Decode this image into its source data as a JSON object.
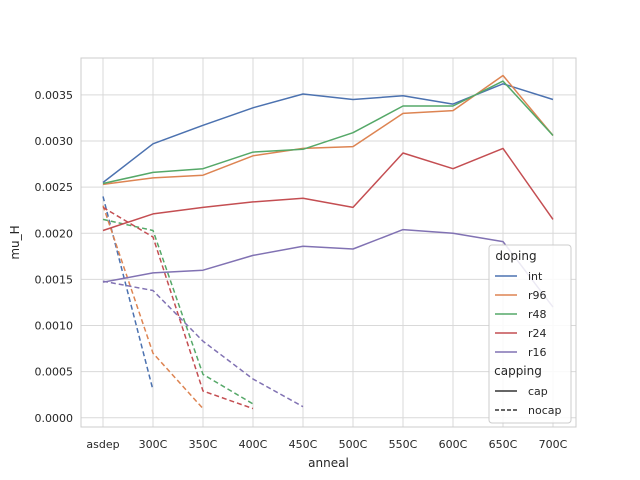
{
  "chart_data": {
    "type": "line",
    "xlabel": "anneal",
    "ylabel": "mu_H",
    "categories": [
      "asdep",
      "300C",
      "350C",
      "400C",
      "450C",
      "500C",
      "550C",
      "600C",
      "650C",
      "700C"
    ],
    "ylim": [
      -0.0001,
      0.0039
    ],
    "yticks": [
      0.0,
      0.0005,
      0.001,
      0.0015,
      0.002,
      0.0025,
      0.003,
      0.0035
    ],
    "ytick_labels": [
      "0.0000",
      "0.0005",
      "0.0010",
      "0.0015",
      "0.0020",
      "0.0025",
      "0.0030",
      "0.0035"
    ],
    "grid": true,
    "legend_placement": "lower-right",
    "legend": {
      "hue_title": "doping",
      "style_title": "capping",
      "style_entries": [
        {
          "label": "cap",
          "dash": "solid"
        },
        {
          "label": "nocap",
          "dash": "dashed"
        }
      ]
    },
    "series": [
      {
        "name": "int",
        "color": "#4c72b0",
        "cap": [
          0.00255,
          0.00297,
          0.00317,
          0.00336,
          0.00351,
          0.00345,
          0.00349,
          0.0034,
          0.00362,
          0.00345
        ],
        "nocap": [
          0.0024,
          0.0003,
          null,
          null,
          null,
          null,
          null,
          null,
          null,
          null
        ]
      },
      {
        "name": "r96",
        "color": "#dd8452",
        "cap": [
          0.00253,
          0.0026,
          0.00263,
          0.00284,
          0.00292,
          0.00294,
          0.0033,
          0.00333,
          0.00371,
          0.00306
        ],
        "nocap": [
          0.0023,
          0.0007,
          0.0001,
          null,
          null,
          null,
          null,
          null,
          null,
          null
        ]
      },
      {
        "name": "r48",
        "color": "#55a868",
        "cap": [
          0.00254,
          0.00266,
          0.0027,
          0.00288,
          0.00291,
          0.00309,
          0.00338,
          0.00338,
          0.00365,
          0.00306
        ],
        "nocap": [
          0.00215,
          0.00203,
          0.00047,
          0.00015,
          null,
          null,
          null,
          null,
          null,
          null
        ]
      },
      {
        "name": "r24",
        "color": "#c44e52",
        "cap": [
          0.00203,
          0.00221,
          0.00228,
          0.00234,
          0.00238,
          0.00228,
          0.00287,
          0.0027,
          0.00292,
          0.00215
        ],
        "nocap": [
          0.00228,
          0.00196,
          0.00029,
          0.0001,
          null,
          null,
          null,
          null,
          null,
          null
        ]
      },
      {
        "name": "r16",
        "color": "#8172b3",
        "cap": [
          0.00147,
          0.00157,
          0.0016,
          0.00176,
          0.00186,
          0.00183,
          0.00204,
          0.002,
          0.00191,
          0.0012
        ],
        "nocap": [
          0.00148,
          0.00138,
          0.00083,
          0.00042,
          0.00012,
          null,
          null,
          null,
          null,
          null
        ]
      }
    ]
  }
}
